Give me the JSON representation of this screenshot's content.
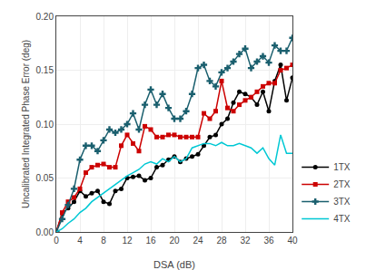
{
  "chart_data": {
    "type": "line",
    "xlabel": "DSA (dB)",
    "ylabel": "Uncalibrated Integrated Phase Error (deg)",
    "x": [
      0,
      1,
      2,
      3,
      4,
      5,
      6,
      7,
      8,
      9,
      10,
      11,
      12,
      13,
      14,
      15,
      16,
      17,
      18,
      19,
      20,
      21,
      22,
      23,
      24,
      25,
      26,
      27,
      28,
      29,
      30,
      31,
      32,
      33,
      34,
      35,
      36,
      37,
      38,
      39,
      40
    ],
    "series": [
      {
        "name": "1TX",
        "color": "#000000",
        "marker": "circle",
        "values": [
          0.0,
          0.017,
          0.022,
          0.028,
          0.038,
          0.033,
          0.036,
          0.038,
          0.028,
          0.026,
          0.038,
          0.04,
          0.05,
          0.051,
          0.052,
          0.048,
          0.05,
          0.06,
          0.062,
          0.067,
          0.07,
          0.065,
          0.068,
          0.07,
          0.072,
          0.08,
          0.088,
          0.09,
          0.1,
          0.105,
          0.12,
          0.13,
          0.128,
          0.125,
          0.118,
          0.13,
          0.112,
          0.14,
          0.155,
          0.122,
          0.143
        ]
      },
      {
        "name": "2TX",
        "color": "#cc0000",
        "marker": "square",
        "values": [
          0.0,
          0.018,
          0.028,
          0.032,
          0.04,
          0.055,
          0.06,
          0.062,
          0.063,
          0.06,
          0.06,
          0.08,
          0.09,
          0.082,
          0.075,
          0.098,
          0.095,
          0.088,
          0.088,
          0.09,
          0.09,
          0.088,
          0.088,
          0.088,
          0.088,
          0.11,
          0.105,
          0.112,
          0.14,
          0.115,
          0.112,
          0.118,
          0.122,
          0.125,
          0.13,
          0.135,
          0.138,
          0.138,
          0.15,
          0.152,
          0.155
        ]
      },
      {
        "name": "3TX",
        "color": "#1a5f6e",
        "marker": "cross",
        "values": [
          0.0,
          0.012,
          0.025,
          0.04,
          0.067,
          0.08,
          0.08,
          0.075,
          0.085,
          0.095,
          0.092,
          0.095,
          0.1,
          0.11,
          0.095,
          0.118,
          0.132,
          0.118,
          0.128,
          0.115,
          0.105,
          0.105,
          0.112,
          0.128,
          0.152,
          0.155,
          0.14,
          0.135,
          0.148,
          0.152,
          0.158,
          0.165,
          0.17,
          0.152,
          0.158,
          0.163,
          0.157,
          0.173,
          0.168,
          0.168,
          0.18
        ]
      },
      {
        "name": "4TX",
        "color": "#00c8d4",
        "marker": "none",
        "values": [
          0.0,
          0.003,
          0.008,
          0.012,
          0.018,
          0.022,
          0.028,
          0.032,
          0.036,
          0.04,
          0.044,
          0.048,
          0.052,
          0.055,
          0.058,
          0.063,
          0.065,
          0.063,
          0.068,
          0.065,
          0.07,
          0.065,
          0.068,
          0.078,
          0.08,
          0.082,
          0.082,
          0.08,
          0.083,
          0.08,
          0.08,
          0.082,
          0.08,
          0.078,
          0.073,
          0.078,
          0.068,
          0.062,
          0.09,
          0.073,
          0.073
        ]
      }
    ],
    "xlim": [
      0,
      40
    ],
    "ylim": [
      0,
      0.2
    ],
    "xticks": [
      0,
      4,
      8,
      12,
      16,
      20,
      24,
      28,
      32,
      36,
      40
    ],
    "yticks": [
      {
        "value": 0,
        "label": "0.00"
      },
      {
        "value": 0.05,
        "label": "0.05"
      },
      {
        "value": 0.1,
        "label": "0.10"
      },
      {
        "value": 0.15,
        "label": "0.15"
      },
      {
        "value": 0.2,
        "label": "0.20"
      }
    ],
    "grid": true,
    "legend": "lower right"
  }
}
